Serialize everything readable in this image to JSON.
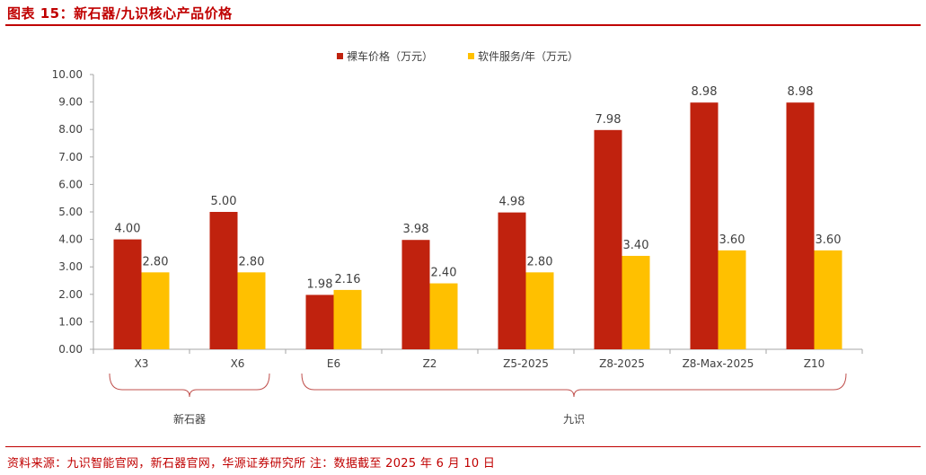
{
  "header": {
    "title": "图表 15：新石器/九识核心产品价格"
  },
  "footer": {
    "source": "资料来源：九识智能官网，新石器官网，华源证券研究所   注：数据截至 2025 年 6 月 10 日"
  },
  "colors": {
    "accent": "#c00000",
    "series1": "#c0220e",
    "series2": "#ffc000"
  },
  "chart_data": {
    "type": "bar",
    "categories": [
      "X3",
      "X6",
      "E6",
      "Z2",
      "Z5-2025",
      "Z8-2025",
      "Z8-Max-2025",
      "Z10"
    ],
    "series": [
      {
        "name": "裸车价格（万元）",
        "values": [
          4.0,
          5.0,
          1.98,
          3.98,
          4.98,
          7.98,
          8.98,
          8.98
        ]
      },
      {
        "name": "软件服务/年（万元）",
        "values": [
          2.8,
          2.8,
          2.16,
          2.4,
          2.8,
          3.4,
          3.6,
          3.6
        ]
      }
    ],
    "data_labels": [
      [
        "4.00",
        "5.00",
        "1.98",
        "3.98",
        "4.98",
        "7.98",
        "8.98",
        "8.98"
      ],
      [
        "2.80",
        "2.80",
        "2.16",
        "2.40",
        "2.80",
        "3.40",
        "3.60",
        "3.60"
      ]
    ],
    "y_ticks": [
      "0.00",
      "1.00",
      "2.00",
      "3.00",
      "4.00",
      "5.00",
      "6.00",
      "7.00",
      "8.00",
      "9.00",
      "10.00"
    ],
    "ylim": [
      0,
      10
    ],
    "groups": [
      {
        "label": "新石器",
        "from": 0,
        "to": 1
      },
      {
        "label": "九识",
        "from": 2,
        "to": 7
      }
    ],
    "legend_position": "top-center",
    "grid": false
  }
}
